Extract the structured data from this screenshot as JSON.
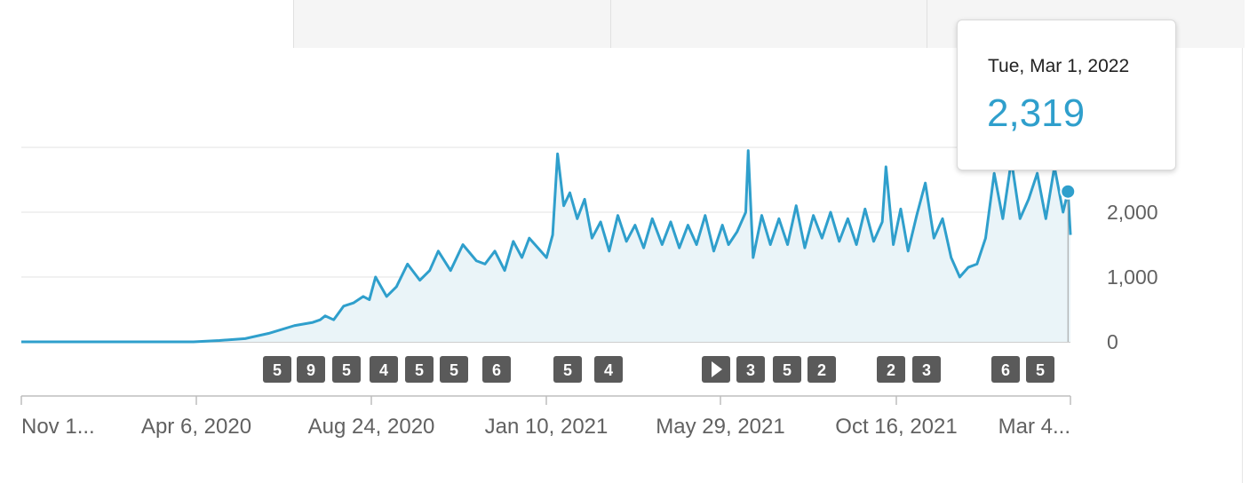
{
  "chart_data": {
    "type": "line",
    "title": "",
    "xlabel": "",
    "ylabel": "",
    "ylim": [
      0,
      3000
    ],
    "yticks": [
      0,
      1000,
      2000
    ],
    "ytick_labels": [
      "0",
      "1,000",
      "2,000"
    ],
    "xtick_labels": [
      "Nov 1...",
      "Apr 6, 2020",
      "Aug 24, 2020",
      "Jan 10, 2021",
      "May 29, 2021",
      "Oct 16, 2021",
      "Mar 4..."
    ],
    "grid": true,
    "colors": {
      "line": "#2f9fcc",
      "area": "#eaf4f8",
      "badge": "#5a5a5a"
    },
    "series": [
      {
        "x": [
          "2019-11-01",
          "2020-01-15",
          "2020-03-20",
          "2020-04-10",
          "2020-05-01",
          "2020-05-20",
          "2020-06-10",
          "2020-06-25",
          "2020-07-01",
          "2020-07-05",
          "2020-07-12",
          "2020-07-20",
          "2020-07-28",
          "2020-08-05",
          "2020-08-10",
          "2020-08-15",
          "2020-08-24",
          "2020-09-01",
          "2020-09-10",
          "2020-09-20",
          "2020-09-28",
          "2020-10-05",
          "2020-10-15",
          "2020-10-25",
          "2020-11-05",
          "2020-11-12",
          "2020-11-20",
          "2020-11-28",
          "2020-12-05",
          "2020-12-12",
          "2020-12-18",
          "2020-12-25",
          "2021-01-01",
          "2021-01-06",
          "2021-01-10",
          "2021-01-15",
          "2021-01-20",
          "2021-01-26",
          "2021-02-01",
          "2021-02-07",
          "2021-02-14",
          "2021-02-21",
          "2021-02-28",
          "2021-03-07",
          "2021-03-14",
          "2021-03-21",
          "2021-03-28",
          "2021-04-05",
          "2021-04-12",
          "2021-04-19",
          "2021-04-26",
          "2021-05-03",
          "2021-05-10",
          "2021-05-17",
          "2021-05-24",
          "2021-05-29",
          "2021-06-05",
          "2021-06-12",
          "2021-06-14",
          "2021-06-18",
          "2021-06-25",
          "2021-07-02",
          "2021-07-09",
          "2021-07-16",
          "2021-07-23",
          "2021-07-30",
          "2021-08-06",
          "2021-08-13",
          "2021-08-20",
          "2021-08-27",
          "2021-09-03",
          "2021-09-10",
          "2021-09-17",
          "2021-09-24",
          "2021-10-01",
          "2021-10-04",
          "2021-10-10",
          "2021-10-16",
          "2021-10-22",
          "2021-10-29",
          "2021-11-05",
          "2021-11-12",
          "2021-11-19",
          "2021-11-26",
          "2021-12-03",
          "2021-12-10",
          "2021-12-17",
          "2021-12-24",
          "2021-12-31",
          "2022-01-07",
          "2022-01-14",
          "2022-01-21",
          "2022-01-28",
          "2022-02-04",
          "2022-02-11",
          "2022-02-18",
          "2022-02-25",
          "2022-03-01",
          "2022-03-03"
        ],
        "values": [
          0,
          0,
          0,
          20,
          50,
          130,
          250,
          300,
          340,
          400,
          340,
          550,
          600,
          700,
          650,
          1000,
          700,
          850,
          1200,
          950,
          1100,
          1400,
          1100,
          1500,
          1250,
          1200,
          1400,
          1100,
          1550,
          1300,
          1600,
          1450,
          1300,
          1650,
          2900,
          2100,
          2300,
          1900,
          2200,
          1600,
          1850,
          1400,
          1950,
          1550,
          1800,
          1450,
          1900,
          1500,
          1850,
          1450,
          1800,
          1500,
          1950,
          1400,
          1800,
          1500,
          1700,
          2000,
          2950,
          1300,
          1950,
          1500,
          1900,
          1500,
          2100,
          1450,
          1950,
          1600,
          2000,
          1550,
          1900,
          1500,
          2050,
          1550,
          1850,
          2700,
          1500,
          2050,
          1400,
          1950,
          2450,
          1600,
          1900,
          1300,
          1000,
          1150,
          1200,
          1600,
          2600,
          1900,
          2800,
          1900,
          2200,
          2600,
          1900,
          2700,
          2000,
          2319,
          1650
        ]
      }
    ],
    "annotations": [
      "5",
      "9",
      "5",
      "4",
      "5",
      "5",
      "6",
      "5",
      "4",
      "3",
      "5",
      "2",
      "2",
      "3",
      "6",
      "5"
    ],
    "tooltip": {
      "date": "Tue, Mar 1, 2022",
      "value": "2,319"
    }
  }
}
